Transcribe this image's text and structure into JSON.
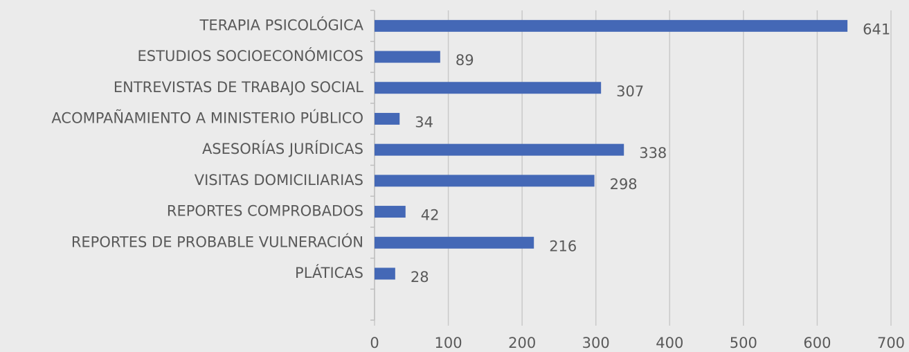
{
  "chart_data": {
    "type": "bar",
    "orientation": "horizontal",
    "categories": [
      "TERAPIA PSICOLÓGICA",
      "ESTUDIOS SOCIOECONÓMICOS",
      "ENTREVISTAS DE TRABAJO SOCIAL",
      "ACOMPAÑAMIENTO A MINISTERIO PÚBLICO",
      "ASESORÍAS JURÍDICAS",
      "VISITAS DOMICILIARIAS",
      "REPORTES COMPROBADOS",
      "REPORTES DE PROBABLE VULNERACIÓN",
      "PLÁTICAS",
      null
    ],
    "values": [
      641,
      89,
      307,
      34,
      338,
      298,
      42,
      216,
      28,
      null
    ],
    "color": "#4468b6",
    "xlim": [
      0,
      700
    ],
    "xticks": [
      0,
      100,
      200,
      300,
      400,
      500,
      600,
      700
    ],
    "grid": true
  }
}
